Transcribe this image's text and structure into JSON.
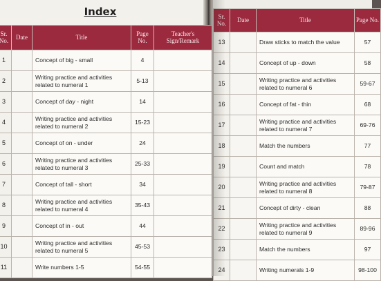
{
  "index": {
    "title": "Index",
    "headers": {
      "sr": "Sr. No.",
      "date": "Date",
      "title": "Title",
      "page": "Page No.",
      "sign": "Teacher's Sign/Remark"
    }
  },
  "left_rows": [
    {
      "sr": "1",
      "title": "Concept of big - small",
      "page": "4"
    },
    {
      "sr": "2",
      "title": "Writing practice and activities related to numeral 1",
      "page": "5-13"
    },
    {
      "sr": "3",
      "title": "Concept of day - night",
      "page": "14"
    },
    {
      "sr": "4",
      "title": "Writing practice and activities related to numeral 2",
      "page": "15-23"
    },
    {
      "sr": "5",
      "title": "Concept of on - under",
      "page": "24"
    },
    {
      "sr": "6",
      "title": "Writing practice and activities related to numeral 3",
      "page": "25-33"
    },
    {
      "sr": "7",
      "title": "Concept of tall - short",
      "page": "34"
    },
    {
      "sr": "8",
      "title": "Writing practice and activities related to numeral 4",
      "page": "35-43"
    },
    {
      "sr": "9",
      "title": "Concept of in - out",
      "page": "44"
    },
    {
      "sr": "10",
      "title": "Writing practice and activities related to numeral 5",
      "page": "45-53"
    },
    {
      "sr": "11",
      "title": "Write numbers 1-5",
      "page": "54-55"
    }
  ],
  "right_rows": [
    {
      "sr": "13",
      "title": "Draw sticks to match the value",
      "page": "57"
    },
    {
      "sr": "14",
      "title": "Concept of up - down",
      "page": "58"
    },
    {
      "sr": "15",
      "title": "Writing practice and activities related to numeral 6",
      "page": "59-67"
    },
    {
      "sr": "16",
      "title": "Concept of fat - thin",
      "page": "68"
    },
    {
      "sr": "17",
      "title": "Writing practice and activities related to numeral 7",
      "page": "69-76"
    },
    {
      "sr": "18",
      "title": "Match the numbers",
      "page": "77"
    },
    {
      "sr": "19",
      "title": "Count and match",
      "page": "78"
    },
    {
      "sr": "20",
      "title": "Writing practice and activities related to numeral 8",
      "page": "79-87"
    },
    {
      "sr": "21",
      "title": "Concept of dirty - clean",
      "page": "88"
    },
    {
      "sr": "22",
      "title": "Writing practice and activities related to numeral 9",
      "page": "89-96"
    },
    {
      "sr": "23",
      "title": "Match the numbers",
      "page": "97"
    },
    {
      "sr": "24",
      "title": "Writing numerals 1-9",
      "page": "98-100"
    }
  ],
  "colors": {
    "header_bg": "#9c2a3e",
    "page_bg": "#f3f1ec"
  }
}
